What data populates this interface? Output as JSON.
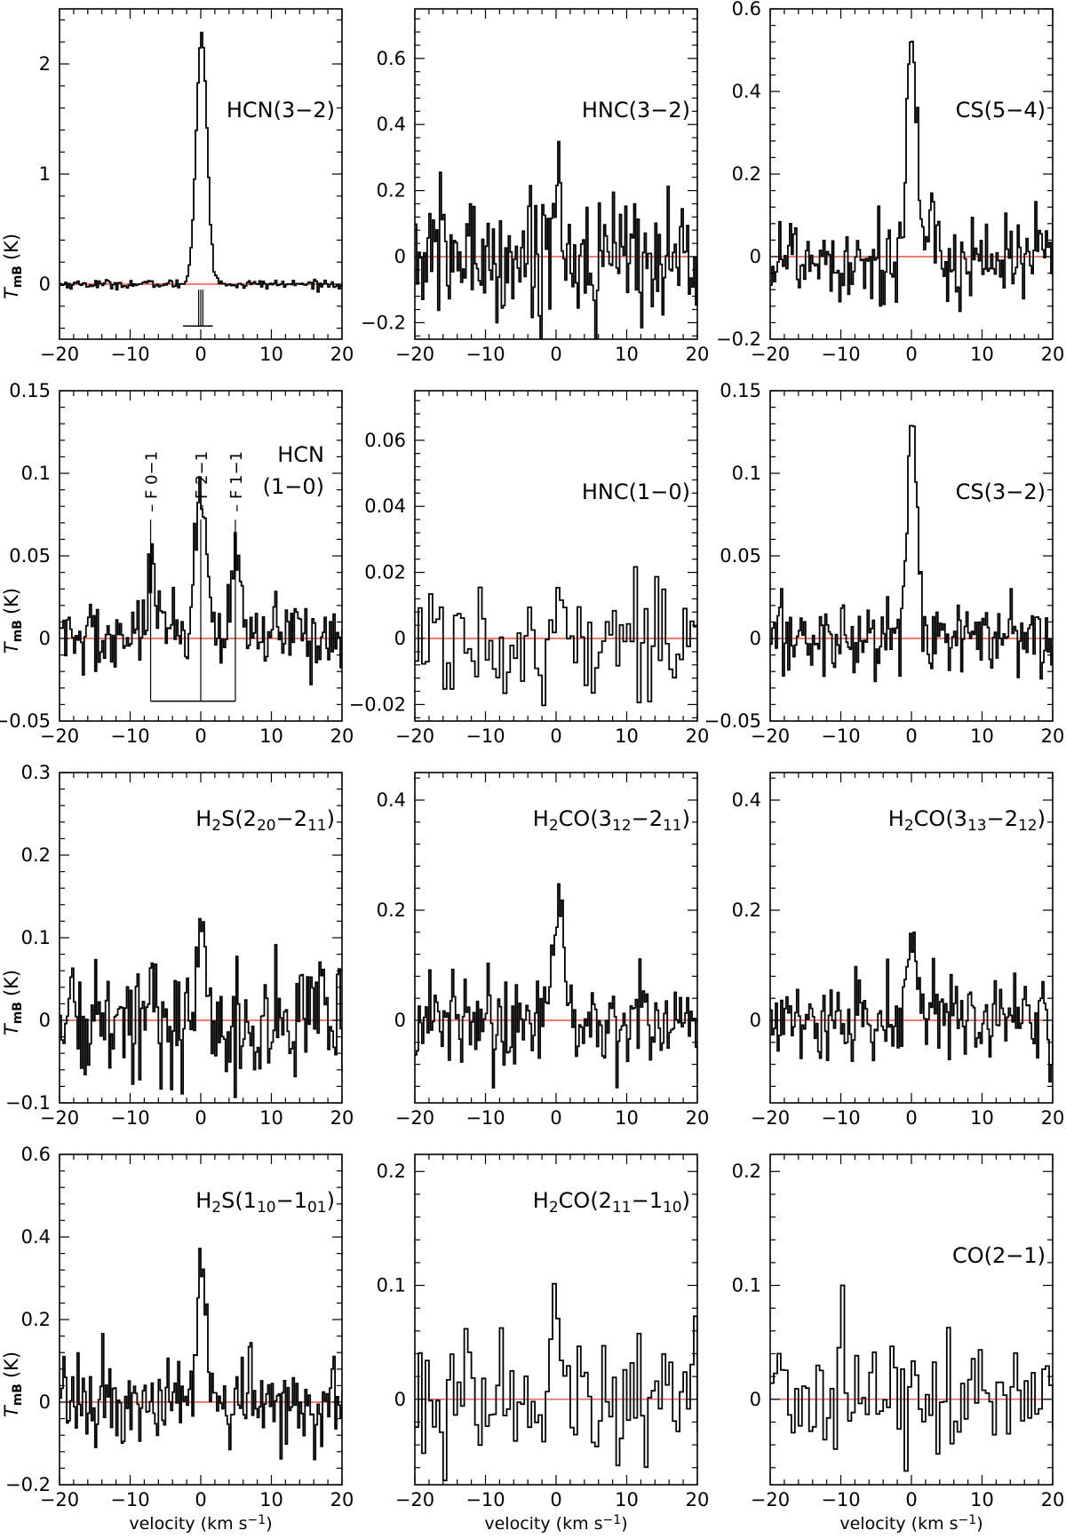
{
  "chart_data": [
    {
      "type": "line",
      "subtype": "step-spectrum",
      "label": "HCN(3−2)",
      "ylabel": "TmB (K)",
      "xlabel": "",
      "xlim": [
        -20,
        20
      ],
      "ylim": [
        -0.5,
        2.5
      ],
      "yticks": [
        0,
        1,
        2
      ],
      "ytick_labels": [
        "0",
        "1",
        "2"
      ],
      "xticks": [
        -20,
        -10,
        0,
        10,
        20
      ],
      "xtick_labels": [
        "−20",
        "−10",
        "0",
        "10",
        "20"
      ],
      "peak": {
        "v": 0,
        "T": 2.28,
        "width": 1.8
      },
      "noise": 0.02,
      "hyperfine_bar": {
        "y_top": -0.05,
        "y_bar": -0.38,
        "left": -2.5,
        "right": 1.7,
        "components": [
          0,
          -0.3,
          0.3
        ]
      }
    },
    {
      "type": "line",
      "subtype": "step-spectrum",
      "label": "HNC(3−2)",
      "ylabel": "",
      "xlabel": "",
      "xlim": [
        -20,
        20
      ],
      "ylim": [
        -0.25,
        0.75
      ],
      "yticks": [
        -0.2,
        0,
        0.2,
        0.4,
        0.6
      ],
      "ytick_labels": [
        "−0.2",
        "0",
        "0.2",
        "0.4",
        "0.6"
      ],
      "xticks": [
        -20,
        -10,
        0,
        10,
        20
      ],
      "xtick_labels": [
        "−20",
        "−10",
        "0",
        "10",
        "20"
      ],
      "peak": {
        "v": 0,
        "T": 0.22,
        "width": 1.5
      },
      "noise": 0.1
    },
    {
      "type": "line",
      "subtype": "step-spectrum",
      "label": "CS(5−4)",
      "ylabel": "",
      "xlabel": "",
      "xlim": [
        -20,
        20
      ],
      "ylim": [
        -0.2,
        0.6
      ],
      "yticks": [
        -0.2,
        0,
        0.2,
        0.4,
        0.6
      ],
      "ytick_labels": [
        "−0.2",
        "0",
        "0.2",
        "0.4",
        "0.6"
      ],
      "xticks": [
        -20,
        -10,
        0,
        10,
        20
      ],
      "xtick_labels": [
        "−20",
        "−10",
        "0",
        "10",
        "20"
      ],
      "peak": {
        "v": 0,
        "T": 0.54,
        "width": 1.6
      },
      "noise": 0.06
    },
    {
      "type": "line",
      "subtype": "step-spectrum",
      "label_lines": [
        "HCN",
        "(1−0)"
      ],
      "ylabel": "TmB (K)",
      "xlabel": "",
      "xlim": [
        -20,
        20
      ],
      "ylim": [
        -0.05,
        0.15
      ],
      "yticks": [
        -0.05,
        0,
        0.05,
        0.1,
        0.15
      ],
      "ytick_labels": [
        "−0.05",
        "0",
        "0.05",
        "0.1",
        "0.15"
      ],
      "xticks": [
        -20,
        -10,
        0,
        10,
        20
      ],
      "xtick_labels": [
        "−20",
        "−10",
        "0",
        "10",
        "20"
      ],
      "peaks": [
        {
          "v": -7.1,
          "T": 0.05,
          "width": 1.2
        },
        {
          "v": 0,
          "T": 0.085,
          "width": 1.8
        },
        {
          "v": 4.9,
          "T": 0.05,
          "width": 1.4
        }
      ],
      "noise": 0.012,
      "hyperfine": [
        {
          "v": -7.1,
          "label": "F 0−1",
          "label_y": 0.095
        },
        {
          "v": 0,
          "label": "F 2−1",
          "label_y": 0.095
        },
        {
          "v": 4.9,
          "label": "F 1−1",
          "label_y": 0.095
        }
      ],
      "hyperfine_bar_y": -0.038
    },
    {
      "type": "line",
      "subtype": "step-spectrum",
      "label": "HNC(1−0)",
      "ylabel": "",
      "xlabel": "",
      "xlim": [
        -20,
        20
      ],
      "ylim": [
        -0.025,
        0.075
      ],
      "yticks": [
        -0.02,
        0,
        0.02,
        0.04,
        0.06
      ],
      "ytick_labels": [
        "−0.02",
        "0",
        "0.02",
        "0.04",
        "0.06"
      ],
      "xticks": [
        -20,
        -10,
        0,
        10,
        20
      ],
      "xtick_labels": [
        "−20",
        "−10",
        "0",
        "10",
        "20"
      ],
      "peak": {
        "v": 0.5,
        "T": 0.025,
        "width": 1.6
      },
      "noise": 0.009
    },
    {
      "type": "line",
      "subtype": "step-spectrum",
      "label": "CS(3−2)",
      "ylabel": "",
      "xlabel": "",
      "xlim": [
        -20,
        20
      ],
      "ylim": [
        -0.05,
        0.15
      ],
      "yticks": [
        -0.05,
        0,
        0.05,
        0.1,
        0.15
      ],
      "ytick_labels": [
        "−0.05",
        "0",
        "0.05",
        "0.1",
        "0.15"
      ],
      "xticks": [
        -20,
        -10,
        0,
        10,
        20
      ],
      "xtick_labels": [
        "−20",
        "−10",
        "0",
        "10",
        "20"
      ],
      "peak": {
        "v": 0,
        "T": 0.14,
        "width": 1.6
      },
      "noise": 0.012
    },
    {
      "type": "line",
      "subtype": "step-spectrum",
      "label_parts": [
        [
          "H",
          ""
        ],
        [
          "2",
          "sub"
        ],
        [
          "S(2",
          ""
        ],
        [
          "20",
          "sub"
        ],
        [
          "−2",
          ""
        ],
        [
          "11",
          "sub"
        ],
        [
          ")",
          ""
        ]
      ],
      "ylabel": "TmB (K)",
      "xlabel": "",
      "xlim": [
        -20,
        20
      ],
      "ylim": [
        -0.1,
        0.3
      ],
      "yticks": [
        -0.1,
        0,
        0.1,
        0.2,
        0.3
      ],
      "ytick_labels": [
        "−0.1",
        "0",
        "0.1",
        "0.2",
        "0.3"
      ],
      "xticks": [
        -20,
        -10,
        0,
        10,
        20
      ],
      "xtick_labels": [
        "−20",
        "−10",
        "0",
        "10",
        "20"
      ],
      "peak": {
        "v": 0,
        "T": 0.15,
        "width": 1.4
      },
      "noise": 0.04
    },
    {
      "type": "line",
      "subtype": "step-spectrum",
      "label_parts": [
        [
          "H",
          ""
        ],
        [
          "2",
          "sub"
        ],
        [
          "CO(3",
          ""
        ],
        [
          "12",
          "sub"
        ],
        [
          "−2",
          ""
        ],
        [
          "11",
          "sub"
        ],
        [
          ")",
          ""
        ]
      ],
      "ylabel": "",
      "xlabel": "",
      "xlim": [
        -20,
        20
      ],
      "ylim": [
        -0.15,
        0.45
      ],
      "yticks": [
        0,
        0.2,
        0.4
      ],
      "ytick_labels": [
        "0",
        "0.2",
        "0.4"
      ],
      "xticks": [
        -20,
        -10,
        0,
        10,
        20
      ],
      "xtick_labels": [
        "−20",
        "−10",
        "0",
        "10",
        "20"
      ],
      "peak": {
        "v": 0,
        "T": 0.22,
        "width": 1.6
      },
      "noise": 0.045
    },
    {
      "type": "line",
      "subtype": "step-spectrum",
      "label_parts": [
        [
          "H",
          ""
        ],
        [
          "2",
          "sub"
        ],
        [
          "CO(3",
          ""
        ],
        [
          "13",
          "sub"
        ],
        [
          "−2",
          ""
        ],
        [
          "12",
          "sub"
        ],
        [
          ")",
          ""
        ]
      ],
      "ylabel": "",
      "xlabel": "",
      "xlim": [
        -20,
        20
      ],
      "ylim": [
        -0.15,
        0.45
      ],
      "yticks": [
        0,
        0.2,
        0.4
      ],
      "ytick_labels": [
        "0",
        "0.2",
        "0.4"
      ],
      "xticks": [
        -20,
        -10,
        0,
        10,
        20
      ],
      "xtick_labels": [
        "−20",
        "−10",
        "0",
        "10",
        "20"
      ],
      "peak": {
        "v": 0,
        "T": 0.17,
        "width": 1.6
      },
      "noise": 0.04
    },
    {
      "type": "line",
      "subtype": "step-spectrum",
      "label_parts": [
        [
          "H",
          ""
        ],
        [
          "2",
          "sub"
        ],
        [
          "S(1",
          ""
        ],
        [
          "10",
          "sub"
        ],
        [
          "−1",
          ""
        ],
        [
          "01",
          "sub"
        ],
        [
          ")",
          ""
        ]
      ],
      "ylabel": "TmB (K)",
      "xlabel": "velocity (km s−1)",
      "xlim": [
        -20,
        20
      ],
      "ylim": [
        -0.2,
        0.6
      ],
      "yticks": [
        -0.2,
        0,
        0.2,
        0.4,
        0.6
      ],
      "ytick_labels": [
        "−0.2",
        "0",
        "0.2",
        "0.4",
        "0.6"
      ],
      "xticks": [
        -20,
        -10,
        0,
        10,
        20
      ],
      "xtick_labels": [
        "−20",
        "−10",
        "0",
        "10",
        "20"
      ],
      "peak": {
        "v": 0,
        "T": 0.36,
        "width": 1.4
      },
      "noise": 0.05
    },
    {
      "type": "line",
      "subtype": "step-spectrum",
      "label_parts": [
        [
          "H",
          ""
        ],
        [
          "2",
          "sub"
        ],
        [
          "CO(2",
          ""
        ],
        [
          "11",
          "sub"
        ],
        [
          "−1",
          ""
        ],
        [
          "10",
          "sub"
        ],
        [
          ")",
          ""
        ]
      ],
      "ylabel": "",
      "xlabel": "velocity (km s−1)",
      "xlim": [
        -20,
        20
      ],
      "ylim": [
        -0.075,
        0.215
      ],
      "yticks": [
        0,
        0.1,
        0.2
      ],
      "ytick_labels": [
        "0",
        "0.1",
        "0.2"
      ],
      "xticks": [
        -20,
        -10,
        0,
        10,
        20
      ],
      "xtick_labels": [
        "−20",
        "−10",
        "0",
        "10",
        "20"
      ],
      "peak": {
        "v": 0,
        "T": 0.07,
        "width": 1.5
      },
      "noise": 0.028
    },
    {
      "type": "line",
      "subtype": "step-spectrum",
      "label": "CO(2−1)",
      "ylabel": "",
      "xlabel": "velocity (km s−1)",
      "xlim": [
        -20,
        20
      ],
      "ylim": [
        -0.075,
        0.215
      ],
      "yticks": [
        0,
        0.1,
        0.2
      ],
      "ytick_labels": [
        "0",
        "0.1",
        "0.2"
      ],
      "xticks": [
        -20,
        -10,
        0,
        10,
        20
      ],
      "xtick_labels": [
        "−20",
        "−10",
        "0",
        "10",
        "20"
      ],
      "peak": {
        "v": 0,
        "T": 0.0,
        "width": 1.5
      },
      "noise": 0.028,
      "extra_spike": {
        "v": -9.8,
        "T": 0.1
      }
    }
  ],
  "colors": {
    "spectrum": "#000000",
    "baseline": "#e0301e",
    "axes": "#000000"
  }
}
